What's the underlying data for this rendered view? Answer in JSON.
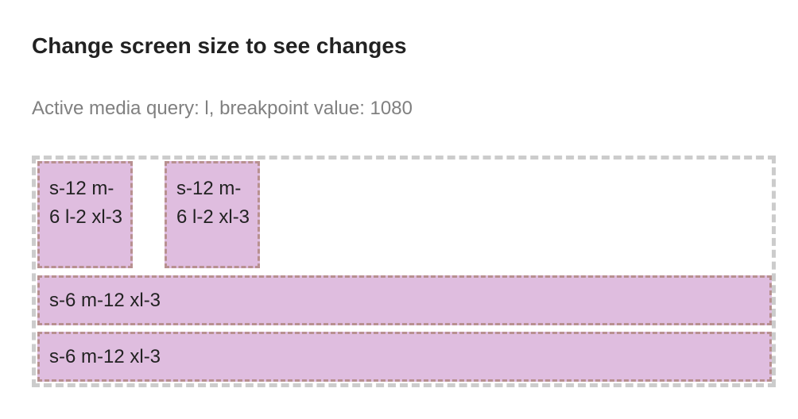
{
  "page": {
    "title": "Change screen size to see changes",
    "media_info": "Active media query: l, breakpoint value: 1080"
  },
  "grid": {
    "cells": [
      {
        "label": "s-12 m-6 l-2 xl-3"
      },
      {
        "label": "s-12 m-6 l-2 xl-3"
      },
      {
        "label": "s-6 m-12 xl-3"
      },
      {
        "label": "s-6 m-12 xl-3"
      }
    ]
  },
  "colors": {
    "cell_background": "#dfbddf",
    "cell_border": "#b89090",
    "container_border": "#cccccc",
    "title_text": "#222222",
    "info_text": "#808080"
  }
}
